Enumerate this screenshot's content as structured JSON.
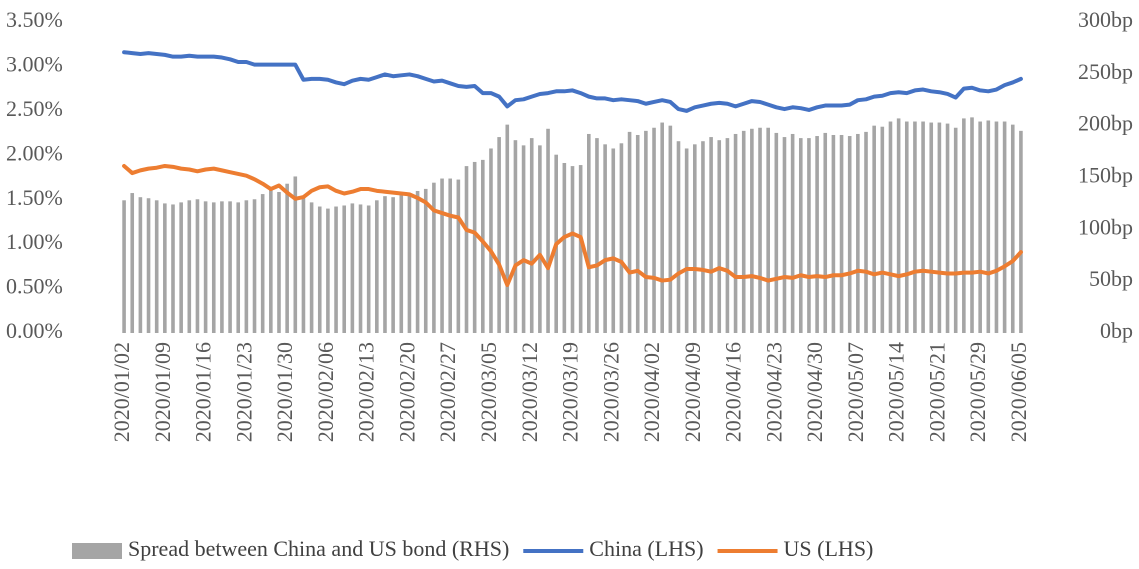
{
  "chart_data": {
    "type": "combo",
    "categories": [
      "2020/01/02",
      null,
      null,
      null,
      null,
      "2020/01/09",
      null,
      null,
      null,
      null,
      "2020/01/16",
      null,
      null,
      null,
      null,
      "2020/01/23",
      null,
      null,
      null,
      null,
      "2020/01/30",
      null,
      null,
      null,
      null,
      "2020/02/06",
      null,
      null,
      null,
      null,
      "2020/02/13",
      null,
      null,
      null,
      null,
      "2020/02/20",
      null,
      null,
      null,
      null,
      "2020/02/27",
      null,
      null,
      null,
      null,
      "2020/03/05",
      null,
      null,
      null,
      null,
      "2020/03/12",
      null,
      null,
      null,
      null,
      "2020/03/19",
      null,
      null,
      null,
      null,
      "2020/03/26",
      null,
      null,
      null,
      null,
      "2020/04/02",
      null,
      null,
      null,
      null,
      "2020/04/09",
      null,
      null,
      null,
      null,
      "2020/04/16",
      null,
      null,
      null,
      null,
      "2020/04/23",
      null,
      null,
      null,
      null,
      "2020/04/30",
      null,
      null,
      null,
      null,
      "2020/05/07",
      null,
      null,
      null,
      null,
      "2020/05/14",
      null,
      null,
      null,
      null,
      "2020/05/21",
      null,
      null,
      null,
      null,
      "2020/05/29",
      null,
      null,
      null,
      null,
      "2020/06/05"
    ],
    "series": [
      {
        "name": "Spread between China and US bond (RHS)",
        "type": "bar",
        "axis": "y2",
        "color": "#a5a5a5",
        "values": [
          128,
          135,
          131,
          130,
          128,
          125,
          124,
          126,
          128,
          129,
          127,
          126,
          127,
          127,
          126,
          128,
          129,
          134,
          140,
          136,
          144,
          151,
          132,
          126,
          122,
          120,
          122,
          123,
          125,
          124,
          123,
          128,
          132,
          131,
          133,
          135,
          137,
          139,
          145,
          149,
          149,
          148,
          161,
          165,
          167,
          178,
          189,
          201,
          186,
          181,
          188,
          181,
          197,
          172,
          164,
          161,
          162,
          192,
          188,
          182,
          178,
          183,
          194,
          191,
          195,
          198,
          203,
          200,
          185,
          178,
          182,
          185,
          189,
          186,
          188,
          192,
          195,
          197,
          198,
          198,
          193,
          189,
          192,
          188,
          188,
          190,
          193,
          191,
          191,
          190,
          192,
          194,
          200,
          199,
          204,
          207,
          204,
          204,
          204,
          203,
          203,
          202,
          198,
          207,
          208,
          204,
          205,
          204,
          204,
          201,
          195
        ]
      },
      {
        "name": "China (LHS)",
        "type": "line",
        "color": "#4472c4",
        "values": [
          3.16,
          3.15,
          3.14,
          3.15,
          3.14,
          3.13,
          3.11,
          3.11,
          3.12,
          3.11,
          3.11,
          3.11,
          3.1,
          3.08,
          3.05,
          3.05,
          3.02,
          3.02,
          3.02,
          3.02,
          3.02,
          3.02,
          2.85,
          2.86,
          2.86,
          2.85,
          2.82,
          2.8,
          2.84,
          2.86,
          2.85,
          2.88,
          2.91,
          2.89,
          2.9,
          2.91,
          2.89,
          2.86,
          2.83,
          2.84,
          2.81,
          2.78,
          2.77,
          2.78,
          2.7,
          2.7,
          2.66,
          2.55,
          2.62,
          2.63,
          2.66,
          2.69,
          2.7,
          2.72,
          2.72,
          2.73,
          2.7,
          2.66,
          2.64,
          2.64,
          2.62,
          2.63,
          2.62,
          2.61,
          2.58,
          2.6,
          2.62,
          2.6,
          2.52,
          2.5,
          2.54,
          2.56,
          2.58,
          2.59,
          2.58,
          2.55,
          2.58,
          2.61,
          2.6,
          2.57,
          2.54,
          2.52,
          2.54,
          2.53,
          2.51,
          2.54,
          2.56,
          2.56,
          2.56,
          2.57,
          2.62,
          2.63,
          2.66,
          2.67,
          2.7,
          2.71,
          2.7,
          2.73,
          2.74,
          2.72,
          2.71,
          2.69,
          2.65,
          2.75,
          2.76,
          2.73,
          2.72,
          2.74,
          2.79,
          2.82,
          2.86
        ]
      },
      {
        "name": "US (LHS)",
        "type": "line",
        "color": "#ed7d31",
        "values": [
          1.88,
          1.8,
          1.83,
          1.85,
          1.86,
          1.88,
          1.87,
          1.85,
          1.84,
          1.82,
          1.84,
          1.85,
          1.83,
          1.81,
          1.79,
          1.77,
          1.73,
          1.68,
          1.62,
          1.66,
          1.58,
          1.51,
          1.53,
          1.6,
          1.64,
          1.65,
          1.6,
          1.57,
          1.59,
          1.62,
          1.62,
          1.6,
          1.59,
          1.58,
          1.57,
          1.56,
          1.52,
          1.47,
          1.38,
          1.35,
          1.32,
          1.3,
          1.16,
          1.13,
          1.03,
          0.92,
          0.77,
          0.54,
          0.76,
          0.82,
          0.78,
          0.88,
          0.73,
          1.0,
          1.08,
          1.12,
          1.08,
          0.74,
          0.76,
          0.82,
          0.84,
          0.8,
          0.68,
          0.7,
          0.63,
          0.62,
          0.59,
          0.6,
          0.67,
          0.72,
          0.72,
          0.71,
          0.69,
          0.73,
          0.7,
          0.63,
          0.63,
          0.64,
          0.62,
          0.59,
          0.61,
          0.63,
          0.62,
          0.65,
          0.63,
          0.64,
          0.63,
          0.65,
          0.65,
          0.67,
          0.7,
          0.69,
          0.66,
          0.68,
          0.66,
          0.64,
          0.66,
          0.69,
          0.7,
          0.69,
          0.68,
          0.67,
          0.67,
          0.68,
          0.68,
          0.69,
          0.67,
          0.7,
          0.75,
          0.81,
          0.91
        ]
      }
    ],
    "ylim": [
      0,
      3.5
    ],
    "yticks": [
      {
        "value": 0,
        "label": "0.00%"
      },
      {
        "value": 0.5,
        "label": "0.50%"
      },
      {
        "value": 1,
        "label": "1.00%"
      },
      {
        "value": 1.5,
        "label": "1.50%"
      },
      {
        "value": 2,
        "label": "2.00%"
      },
      {
        "value": 2.5,
        "label": "2.50%"
      },
      {
        "value": 3,
        "label": "3.00%"
      },
      {
        "value": 3.5,
        "label": "3.50%"
      }
    ],
    "y2lim": [
      0,
      300
    ],
    "y2ticks": [
      {
        "value": 0,
        "label": "0bp"
      },
      {
        "value": 50,
        "label": "50bp"
      },
      {
        "value": 100,
        "label": "100bp"
      },
      {
        "value": 150,
        "label": "150bp"
      },
      {
        "value": 200,
        "label": "200bp"
      },
      {
        "value": 250,
        "label": "250bp"
      },
      {
        "value": 300,
        "label": "300bp"
      }
    ],
    "grid": false,
    "legend": "bottom"
  }
}
